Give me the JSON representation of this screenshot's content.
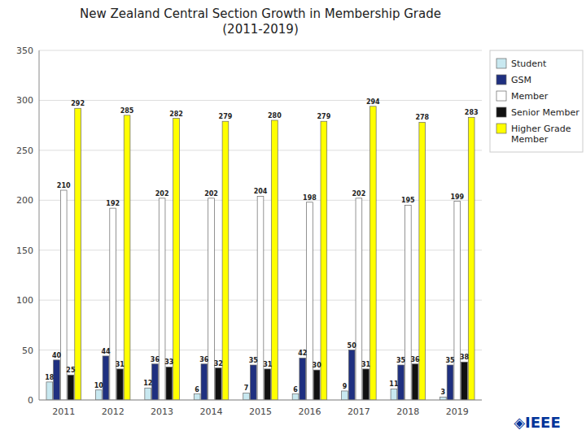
{
  "chart_data": {
    "type": "bar",
    "title": "New Zealand Central Section Growth in Membership Grade\n(2011-2019)",
    "categories": [
      "2011",
      "2012",
      "2013",
      "2014",
      "2015",
      "2016",
      "2017",
      "2018",
      "2019"
    ],
    "series": [
      {
        "name": "Student",
        "color": "#c8e8f0",
        "values": [
          18,
          10,
          12,
          6,
          7,
          6,
          9,
          11,
          3
        ]
      },
      {
        "name": "GSM",
        "color": "#1f3080",
        "values": [
          40,
          44,
          36,
          36,
          35,
          42,
          50,
          35,
          35
        ]
      },
      {
        "name": "Member",
        "color": "#ffffff",
        "values": [
          210,
          192,
          202,
          202,
          204,
          198,
          202,
          195,
          199
        ]
      },
      {
        "name": "Senior Member",
        "color": "#111111",
        "values": [
          25,
          31,
          33,
          32,
          31,
          30,
          31,
          36,
          38
        ]
      },
      {
        "name": "Higher Grade\nMember",
        "color": "#ffff00",
        "values": [
          292,
          285,
          282,
          279,
          280,
          279,
          294,
          278,
          283
        ]
      }
    ],
    "ylim": [
      0,
      350
    ],
    "yticks": [
      0,
      50,
      100,
      150,
      200,
      250,
      300,
      350
    ],
    "grid": true,
    "legend": "upper right",
    "data_labels": true,
    "annotations": [
      "◈IEEE"
    ]
  }
}
